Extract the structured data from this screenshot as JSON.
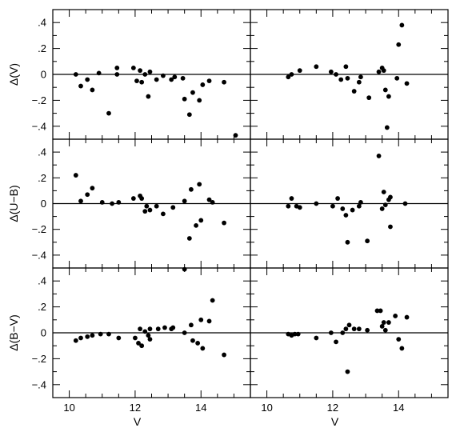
{
  "chart_data": {
    "type": "scatter",
    "layout": "3 rows x 2 columns, shared axes",
    "xlabel": "V",
    "xlim": [
      9.5,
      15.5
    ],
    "xticks": [
      10,
      12,
      14
    ],
    "ylim": [
      -0.5,
      0.5
    ],
    "yticks": [
      -0.4,
      -0.2,
      0,
      0.2,
      0.4
    ],
    "zero_line": true,
    "grid": false,
    "row_ylabels": [
      "Δ(V)",
      "Δ(U−B)",
      "Δ(B−V)"
    ],
    "panels": [
      {
        "row": 0,
        "col": 0,
        "points": [
          [
            10.2,
            0.0
          ],
          [
            10.35,
            -0.09
          ],
          [
            10.55,
            -0.04
          ],
          [
            10.7,
            -0.12
          ],
          [
            10.9,
            0.01
          ],
          [
            11.2,
            -0.3
          ],
          [
            11.45,
            0.05
          ],
          [
            11.45,
            0.0
          ],
          [
            11.95,
            0.05
          ],
          [
            12.05,
            -0.05
          ],
          [
            12.15,
            0.03
          ],
          [
            12.2,
            -0.06
          ],
          [
            12.3,
            0.0
          ],
          [
            12.4,
            -0.17
          ],
          [
            12.45,
            0.02
          ],
          [
            12.65,
            -0.04
          ],
          [
            12.85,
            -0.01
          ],
          [
            13.1,
            -0.04
          ],
          [
            13.2,
            -0.02
          ],
          [
            13.45,
            -0.03
          ],
          [
            13.5,
            -0.19
          ],
          [
            13.65,
            -0.31
          ],
          [
            13.75,
            -0.14
          ],
          [
            13.95,
            -0.2
          ],
          [
            14.05,
            -0.08
          ],
          [
            14.25,
            -0.05
          ],
          [
            14.7,
            -0.06
          ],
          [
            15.05,
            -0.47
          ]
        ]
      },
      {
        "row": 0,
        "col": 1,
        "points": [
          [
            10.65,
            -0.02
          ],
          [
            10.75,
            0.0
          ],
          [
            11.0,
            0.03
          ],
          [
            11.5,
            0.06
          ],
          [
            11.95,
            0.02
          ],
          [
            12.1,
            0.0
          ],
          [
            12.25,
            -0.04
          ],
          [
            12.4,
            0.06
          ],
          [
            12.45,
            -0.03
          ],
          [
            12.65,
            -0.13
          ],
          [
            12.8,
            -0.06
          ],
          [
            12.85,
            -0.02
          ],
          [
            13.1,
            -0.18
          ],
          [
            13.4,
            0.02
          ],
          [
            13.5,
            0.05
          ],
          [
            13.55,
            0.03
          ],
          [
            13.6,
            -0.12
          ],
          [
            13.65,
            -0.41
          ],
          [
            13.7,
            -0.17
          ],
          [
            13.95,
            -0.03
          ],
          [
            14.0,
            0.23
          ],
          [
            14.1,
            0.38
          ],
          [
            14.25,
            -0.07
          ]
        ]
      },
      {
        "row": 1,
        "col": 0,
        "points": [
          [
            10.2,
            0.22
          ],
          [
            10.35,
            0.02
          ],
          [
            10.55,
            0.07
          ],
          [
            10.7,
            0.12
          ],
          [
            11.0,
            0.01
          ],
          [
            11.3,
            0.0
          ],
          [
            11.5,
            0.01
          ],
          [
            11.95,
            0.04
          ],
          [
            12.15,
            0.06
          ],
          [
            12.2,
            0.04
          ],
          [
            12.3,
            -0.06
          ],
          [
            12.35,
            -0.02
          ],
          [
            12.45,
            -0.05
          ],
          [
            12.65,
            -0.02
          ],
          [
            12.85,
            -0.08
          ],
          [
            13.15,
            -0.03
          ],
          [
            13.5,
            0.02
          ],
          [
            13.7,
            0.11
          ],
          [
            13.65,
            -0.27
          ],
          [
            13.85,
            -0.17
          ],
          [
            13.95,
            0.15
          ],
          [
            14.0,
            -0.13
          ],
          [
            14.25,
            0.03
          ],
          [
            14.35,
            0.01
          ],
          [
            14.7,
            -0.15
          ]
        ]
      },
      {
        "row": 1,
        "col": 1,
        "points": [
          [
            10.65,
            -0.02
          ],
          [
            10.75,
            0.04
          ],
          [
            10.9,
            -0.02
          ],
          [
            11.0,
            -0.03
          ],
          [
            11.5,
            0.0
          ],
          [
            12.0,
            -0.02
          ],
          [
            12.15,
            0.04
          ],
          [
            12.3,
            -0.04
          ],
          [
            12.4,
            -0.09
          ],
          [
            12.45,
            -0.3
          ],
          [
            12.6,
            -0.05
          ],
          [
            12.8,
            -0.02
          ],
          [
            12.85,
            0.01
          ],
          [
            13.05,
            -0.29
          ],
          [
            13.4,
            0.37
          ],
          [
            13.5,
            -0.04
          ],
          [
            13.55,
            0.09
          ],
          [
            13.6,
            -0.01
          ],
          [
            13.7,
            0.03
          ],
          [
            13.75,
            0.05
          ],
          [
            13.75,
            -0.18
          ],
          [
            14.2,
            0.0
          ]
        ]
      },
      {
        "row": 2,
        "col": 0,
        "points": [
          [
            10.2,
            -0.06
          ],
          [
            10.35,
            -0.04
          ],
          [
            10.55,
            -0.03
          ],
          [
            10.7,
            -0.02
          ],
          [
            10.95,
            -0.01
          ],
          [
            11.2,
            -0.01
          ],
          [
            11.5,
            -0.04
          ],
          [
            12.0,
            -0.04
          ],
          [
            12.1,
            -0.08
          ],
          [
            12.15,
            0.03
          ],
          [
            12.2,
            -0.1
          ],
          [
            12.3,
            0.01
          ],
          [
            12.4,
            -0.02
          ],
          [
            12.45,
            -0.05
          ],
          [
            12.45,
            0.03
          ],
          [
            12.7,
            0.03
          ],
          [
            12.9,
            0.04
          ],
          [
            13.1,
            0.03
          ],
          [
            13.15,
            0.04
          ],
          [
            13.5,
            0.0
          ],
          [
            13.5,
            0.49
          ],
          [
            13.7,
            0.06
          ],
          [
            13.75,
            -0.06
          ],
          [
            13.9,
            -0.08
          ],
          [
            14.0,
            0.1
          ],
          [
            14.05,
            -0.12
          ],
          [
            14.25,
            0.09
          ],
          [
            14.35,
            0.25
          ],
          [
            14.7,
            -0.17
          ]
        ]
      },
      {
        "row": 2,
        "col": 1,
        "points": [
          [
            10.65,
            -0.01
          ],
          [
            10.75,
            -0.02
          ],
          [
            10.85,
            -0.01
          ],
          [
            10.95,
            -0.01
          ],
          [
            11.5,
            -0.04
          ],
          [
            11.95,
            0.0
          ],
          [
            12.1,
            -0.07
          ],
          [
            12.3,
            0.0
          ],
          [
            12.4,
            0.03
          ],
          [
            12.45,
            -0.3
          ],
          [
            12.5,
            0.06
          ],
          [
            12.65,
            0.03
          ],
          [
            12.8,
            0.03
          ],
          [
            13.05,
            0.02
          ],
          [
            13.35,
            0.17
          ],
          [
            13.45,
            0.17
          ],
          [
            13.5,
            0.05
          ],
          [
            13.55,
            0.08
          ],
          [
            13.6,
            0.02
          ],
          [
            13.7,
            0.08
          ],
          [
            13.9,
            0.13
          ],
          [
            14.0,
            -0.05
          ],
          [
            14.1,
            -0.12
          ],
          [
            14.25,
            0.12
          ]
        ]
      }
    ]
  }
}
